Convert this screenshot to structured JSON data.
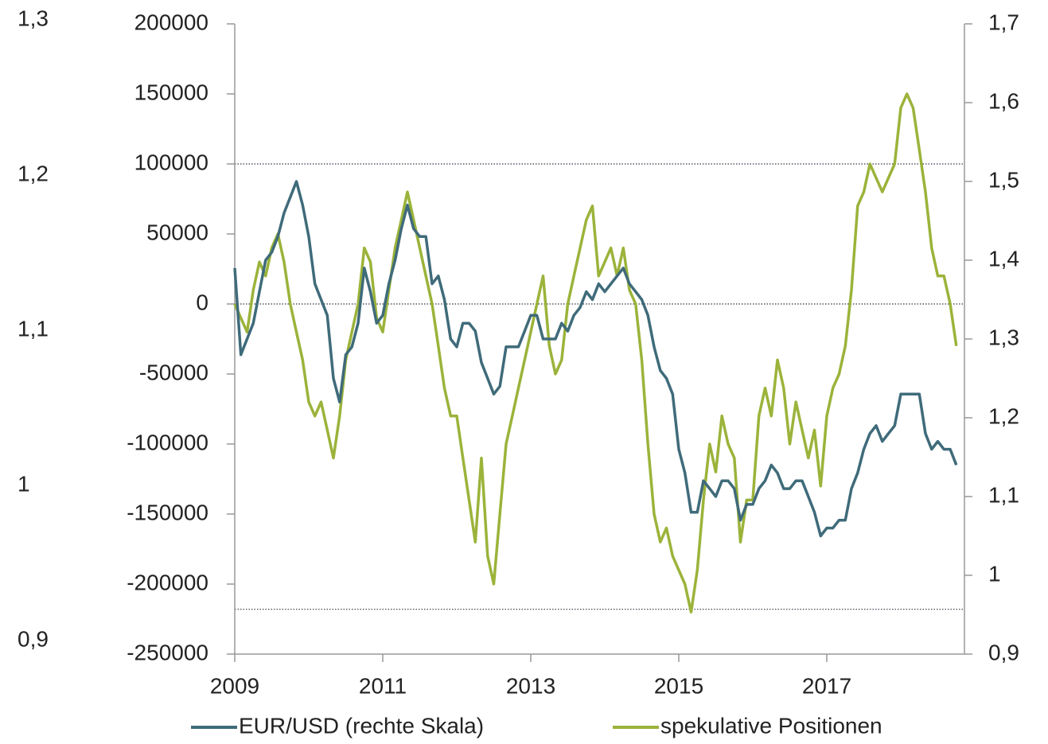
{
  "chart_data": {
    "type": "line",
    "x": [
      2009,
      2009.083,
      2009.167,
      2009.25,
      2009.333,
      2009.417,
      2009.5,
      2009.583,
      2009.667,
      2009.75,
      2009.833,
      2009.917,
      2010,
      2010.083,
      2010.167,
      2010.25,
      2010.333,
      2010.417,
      2010.5,
      2010.583,
      2010.667,
      2010.75,
      2010.833,
      2010.917,
      2011,
      2011.083,
      2011.167,
      2011.25,
      2011.333,
      2011.417,
      2011.5,
      2011.583,
      2011.667,
      2011.75,
      2011.833,
      2011.917,
      2012,
      2012.083,
      2012.167,
      2012.25,
      2012.333,
      2012.417,
      2012.5,
      2012.583,
      2012.667,
      2012.75,
      2012.833,
      2012.917,
      2013,
      2013.083,
      2013.167,
      2013.25,
      2013.333,
      2013.417,
      2013.5,
      2013.583,
      2013.667,
      2013.75,
      2013.833,
      2013.917,
      2014,
      2014.083,
      2014.167,
      2014.25,
      2014.333,
      2014.417,
      2014.5,
      2014.583,
      2014.667,
      2014.75,
      2014.833,
      2014.917,
      2015,
      2015.083,
      2015.167,
      2015.25,
      2015.333,
      2015.417,
      2015.5,
      2015.583,
      2015.667,
      2015.75,
      2015.833,
      2015.917,
      2016,
      2016.083,
      2016.167,
      2016.25,
      2016.333,
      2016.417,
      2016.5,
      2016.583,
      2016.667,
      2016.75,
      2016.833,
      2016.917,
      2017,
      2017.083,
      2017.167,
      2017.25,
      2017.333,
      2017.417,
      2017.5,
      2017.583,
      2017.667,
      2017.75,
      2017.833,
      2017.917,
      2018,
      2018.083,
      2018.167,
      2018.25,
      2018.333,
      2018.417,
      2018.5,
      2018.583,
      2018.667,
      2018.75
    ],
    "series": [
      {
        "name": "EUR/USD (rechte Skala)",
        "color": "#3f6b7a",
        "axis": "y2",
        "values": [
          1.39,
          1.28,
          1.3,
          1.32,
          1.36,
          1.4,
          1.41,
          1.43,
          1.46,
          1.48,
          1.5,
          1.47,
          1.43,
          1.37,
          1.35,
          1.33,
          1.25,
          1.22,
          1.28,
          1.29,
          1.32,
          1.39,
          1.36,
          1.32,
          1.33,
          1.37,
          1.4,
          1.44,
          1.47,
          1.44,
          1.43,
          1.43,
          1.37,
          1.38,
          1.35,
          1.3,
          1.29,
          1.32,
          1.32,
          1.31,
          1.27,
          1.25,
          1.23,
          1.24,
          1.29,
          1.29,
          1.29,
          1.31,
          1.33,
          1.33,
          1.3,
          1.3,
          1.3,
          1.32,
          1.31,
          1.33,
          1.34,
          1.36,
          1.35,
          1.37,
          1.36,
          1.37,
          1.38,
          1.39,
          1.37,
          1.36,
          1.35,
          1.33,
          1.29,
          1.26,
          1.25,
          1.23,
          1.16,
          1.13,
          1.08,
          1.08,
          1.12,
          1.11,
          1.1,
          1.12,
          1.12,
          1.11,
          1.07,
          1.09,
          1.09,
          1.11,
          1.12,
          1.14,
          1.13,
          1.11,
          1.11,
          1.12,
          1.12,
          1.1,
          1.08,
          1.05,
          1.06,
          1.06,
          1.07,
          1.07,
          1.11,
          1.13,
          1.16,
          1.18,
          1.19,
          1.17,
          1.18,
          1.19,
          1.23,
          1.23,
          1.23,
          1.23,
          1.18,
          1.16,
          1.17,
          1.16,
          1.16,
          1.14
        ]
      },
      {
        "name": "spekulative Positionen",
        "color": "#9bb33a",
        "values": [
          0,
          -10000,
          -20000,
          10000,
          30000,
          20000,
          40000,
          50000,
          30000,
          0,
          -20000,
          -40000,
          -70000,
          -80000,
          -70000,
          -90000,
          -110000,
          -80000,
          -40000,
          -20000,
          0,
          40000,
          30000,
          -10000,
          -20000,
          10000,
          40000,
          60000,
          80000,
          60000,
          40000,
          20000,
          0,
          -30000,
          -60000,
          -80000,
          -80000,
          -110000,
          -140000,
          -170000,
          -110000,
          -180000,
          -200000,
          -150000,
          -100000,
          -80000,
          -60000,
          -40000,
          -20000,
          0,
          20000,
          -30000,
          -50000,
          -40000,
          0,
          20000,
          40000,
          60000,
          70000,
          20000,
          30000,
          40000,
          20000,
          40000,
          10000,
          0,
          -40000,
          -100000,
          -150000,
          -170000,
          -160000,
          -180000,
          -190000,
          -200000,
          -220000,
          -190000,
          -140000,
          -100000,
          -120000,
          -80000,
          -100000,
          -110000,
          -170000,
          -140000,
          -140000,
          -80000,
          -60000,
          -80000,
          -40000,
          -60000,
          -100000,
          -70000,
          -90000,
          -110000,
          -90000,
          -130000,
          -80000,
          -60000,
          -50000,
          -30000,
          10000,
          70000,
          80000,
          100000,
          90000,
          80000,
          90000,
          100000,
          140000,
          150000,
          140000,
          110000,
          80000,
          40000,
          20000,
          20000,
          0,
          -30000
        ]
      }
    ],
    "xlim": [
      2009,
      2018.86
    ],
    "xticks": [
      2009,
      2011,
      2013,
      2015,
      2017
    ],
    "ylim": [
      -250000,
      200000
    ],
    "yticks": [
      -250000,
      -200000,
      -150000,
      -100000,
      -50000,
      0,
      50000,
      100000,
      150000,
      200000
    ],
    "y2lim": [
      0.9,
      1.7
    ],
    "y2ticks": [
      {
        "value": 0.9,
        "label": "0,9"
      },
      1,
      {
        "value": 1.1,
        "label": "1,1"
      },
      {
        "value": 1.2,
        "label": "1,2"
      },
      {
        "value": 1.3,
        "label": "1,3"
      },
      {
        "value": 1.4,
        "label": "1,4"
      },
      {
        "value": 1.5,
        "label": "1,5"
      },
      {
        "value": 1.6,
        "label": "1,6"
      },
      {
        "value": 1.7,
        "label": "1,7"
      }
    ],
    "y3lim": [
      0.9,
      1.3
    ],
    "y3ticks": [
      {
        "value": 0.9,
        "label": "0,9"
      },
      1,
      {
        "value": 1.1,
        "label": "1,1"
      },
      {
        "value": 1.2,
        "label": "1,2"
      },
      {
        "value": 1.3,
        "label": "1,3"
      }
    ],
    "reference_lines": [
      100000,
      0,
      -218000
    ],
    "legend": "bottom"
  }
}
